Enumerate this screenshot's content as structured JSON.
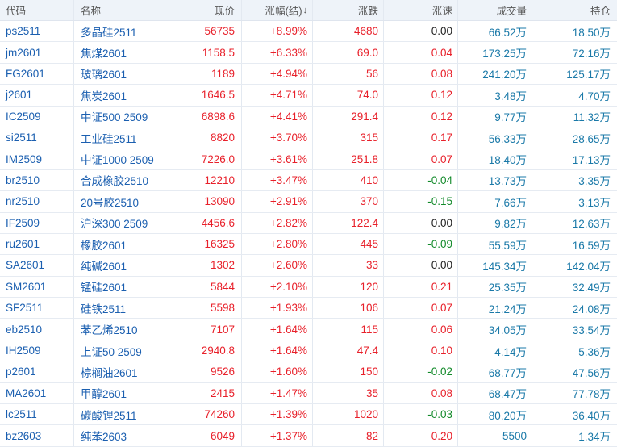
{
  "headers": {
    "code": "代码",
    "name": "名称",
    "price": "现价",
    "pct": "涨幅(结)",
    "pct_sort": "↓",
    "chg": "涨跌",
    "speed": "涨速",
    "vol": "成交量",
    "oi": "持仓"
  },
  "colors": {
    "up": "#e8202a",
    "down": "#128a2a",
    "flat": "#222222",
    "code": "#1b5fb0",
    "amount": "#1a79a8"
  },
  "rows": [
    {
      "code": "ps2511",
      "name": "多晶硅2511",
      "price": "56735",
      "pct": "+8.99%",
      "chg": "4680",
      "speed": "0.00",
      "speed_dir": "flat",
      "vol": "66.52万",
      "oi": "18.50万"
    },
    {
      "code": "jm2601",
      "name": "焦煤2601",
      "price": "1158.5",
      "pct": "+6.33%",
      "chg": "69.0",
      "speed": "0.04",
      "speed_dir": "up",
      "vol": "173.25万",
      "oi": "72.16万"
    },
    {
      "code": "FG2601",
      "name": "玻璃2601",
      "price": "1189",
      "pct": "+4.94%",
      "chg": "56",
      "speed": "0.08",
      "speed_dir": "up",
      "vol": "241.20万",
      "oi": "125.17万"
    },
    {
      "code": "j2601",
      "name": "焦炭2601",
      "price": "1646.5",
      "pct": "+4.71%",
      "chg": "74.0",
      "speed": "0.12",
      "speed_dir": "up",
      "vol": "3.48万",
      "oi": "4.70万"
    },
    {
      "code": "IC2509",
      "name": "中证500 2509",
      "price": "6898.6",
      "pct": "+4.41%",
      "chg": "291.4",
      "speed": "0.12",
      "speed_dir": "up",
      "vol": "9.77万",
      "oi": "11.32万"
    },
    {
      "code": "si2511",
      "name": "工业硅2511",
      "price": "8820",
      "pct": "+3.70%",
      "chg": "315",
      "speed": "0.17",
      "speed_dir": "up",
      "vol": "56.33万",
      "oi": "28.65万"
    },
    {
      "code": "IM2509",
      "name": "中证1000 2509",
      "price": "7226.0",
      "pct": "+3.61%",
      "chg": "251.8",
      "speed": "0.07",
      "speed_dir": "up",
      "vol": "18.40万",
      "oi": "17.13万"
    },
    {
      "code": "br2510",
      "name": "合成橡胶2510",
      "price": "12210",
      "pct": "+3.47%",
      "chg": "410",
      "speed": "-0.04",
      "speed_dir": "down",
      "vol": "13.73万",
      "oi": "3.35万"
    },
    {
      "code": "nr2510",
      "name": "20号胶2510",
      "price": "13090",
      "pct": "+2.91%",
      "chg": "370",
      "speed": "-0.15",
      "speed_dir": "down",
      "vol": "7.66万",
      "oi": "3.13万"
    },
    {
      "code": "IF2509",
      "name": "沪深300 2509",
      "price": "4456.6",
      "pct": "+2.82%",
      "chg": "122.4",
      "speed": "0.00",
      "speed_dir": "flat",
      "vol": "9.82万",
      "oi": "12.63万"
    },
    {
      "code": "ru2601",
      "name": "橡胶2601",
      "price": "16325",
      "pct": "+2.80%",
      "chg": "445",
      "speed": "-0.09",
      "speed_dir": "down",
      "vol": "55.59万",
      "oi": "16.59万"
    },
    {
      "code": "SA2601",
      "name": "纯碱2601",
      "price": "1302",
      "pct": "+2.60%",
      "chg": "33",
      "speed": "0.00",
      "speed_dir": "flat",
      "vol": "145.34万",
      "oi": "142.04万"
    },
    {
      "code": "SM2601",
      "name": "锰硅2601",
      "price": "5844",
      "pct": "+2.10%",
      "chg": "120",
      "speed": "0.21",
      "speed_dir": "up",
      "vol": "25.35万",
      "oi": "32.49万"
    },
    {
      "code": "SF2511",
      "name": "硅铁2511",
      "price": "5598",
      "pct": "+1.93%",
      "chg": "106",
      "speed": "0.07",
      "speed_dir": "up",
      "vol": "21.24万",
      "oi": "24.08万"
    },
    {
      "code": "eb2510",
      "name": "苯乙烯2510",
      "price": "7107",
      "pct": "+1.64%",
      "chg": "115",
      "speed": "0.06",
      "speed_dir": "up",
      "vol": "34.05万",
      "oi": "33.54万"
    },
    {
      "code": "IH2509",
      "name": "上证50 2509",
      "price": "2940.8",
      "pct": "+1.64%",
      "chg": "47.4",
      "speed": "0.10",
      "speed_dir": "up",
      "vol": "4.14万",
      "oi": "5.36万"
    },
    {
      "code": "p2601",
      "name": "棕榈油2601",
      "price": "9526",
      "pct": "+1.60%",
      "chg": "150",
      "speed": "-0.02",
      "speed_dir": "down",
      "vol": "68.77万",
      "oi": "47.56万"
    },
    {
      "code": "MA2601",
      "name": "甲醇2601",
      "price": "2415",
      "pct": "+1.47%",
      "chg": "35",
      "speed": "0.08",
      "speed_dir": "up",
      "vol": "68.47万",
      "oi": "77.78万"
    },
    {
      "code": "lc2511",
      "name": "碳酸锂2511",
      "price": "74260",
      "pct": "+1.39%",
      "chg": "1020",
      "speed": "-0.03",
      "speed_dir": "down",
      "vol": "80.20万",
      "oi": "36.40万"
    },
    {
      "code": "bz2603",
      "name": "纯苯2603",
      "price": "6049",
      "pct": "+1.37%",
      "chg": "82",
      "speed": "0.20",
      "speed_dir": "up",
      "vol": "5500",
      "oi": "1.34万"
    }
  ]
}
